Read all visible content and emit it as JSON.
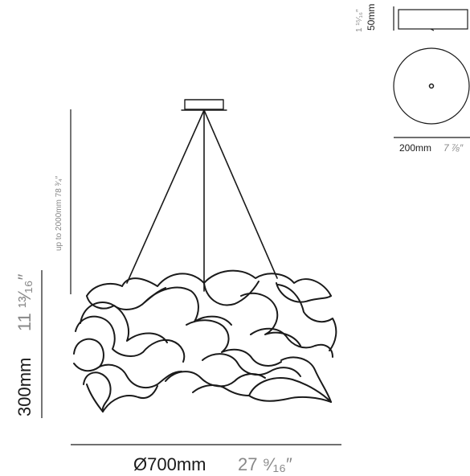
{
  "dimensions": {
    "diameter": {
      "metric": "Ø700mm",
      "imperial": "27 ⁹⁄₁₆″"
    },
    "height": {
      "metric": "300mm",
      "imperial": "11 ¹³⁄₁₆″"
    },
    "cable_length": {
      "text": "up to 2000mm 78 ³⁄₄″"
    },
    "canopy_diameter": {
      "metric": "200mm",
      "imperial": "7 ⅞″"
    },
    "canopy_height": {
      "metric": "50mm",
      "imperial": "1 ¹⁵⁄₁₆″"
    }
  },
  "colors": {
    "line": "#1a1a1a",
    "imperial_text": "#888888",
    "metric_text": "#1a1a1a"
  }
}
